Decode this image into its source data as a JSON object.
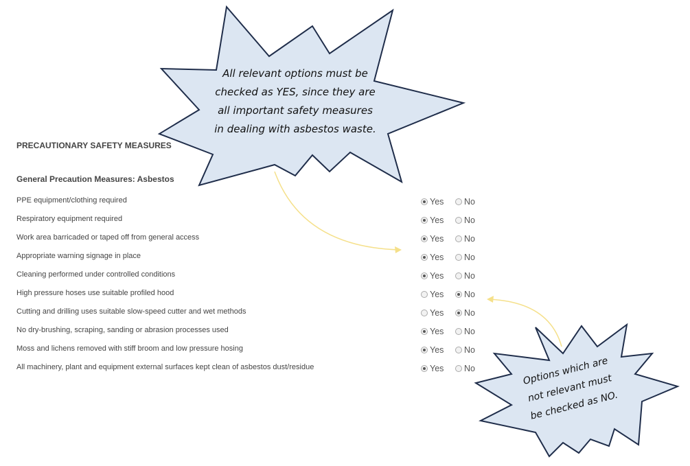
{
  "section_title": "PRECAUTIONARY SAFETY MEASURES",
  "subsection_title": "General Precaution Measures: Asbestos",
  "option_labels": {
    "yes": "Yes",
    "no": "No"
  },
  "items": [
    {
      "label": "PPE equipment/clothing required",
      "value": "Yes"
    },
    {
      "label": "Respiratory equipment required",
      "value": "Yes"
    },
    {
      "label": "Work area barricaded or taped off from general access",
      "value": "Yes"
    },
    {
      "label": "Appropriate warning signage in place",
      "value": "Yes"
    },
    {
      "label": "Cleaning performed under controlled conditions",
      "value": "Yes"
    },
    {
      "label": "High pressure hoses use suitable profiled hood",
      "value": "No"
    },
    {
      "label": "Cutting and drilling uses suitable slow-speed cutter and wet methods",
      "value": "No"
    },
    {
      "label": "No dry-brushing, scraping, sanding or abrasion processes used",
      "value": "Yes"
    },
    {
      "label": "Moss and lichens removed with stiff broom and low pressure hosing",
      "value": "Yes"
    },
    {
      "label": "All machinery, plant and equipment external surfaces kept clean of asbestos dust/residue",
      "value": "Yes"
    }
  ],
  "callouts": {
    "top": [
      "All relevant options must be",
      "checked as YES, since they are",
      "all important safety measures",
      "in dealing with asbestos waste."
    ],
    "bottom": [
      "Options which are",
      "not relevant must",
      "be checked as NO."
    ]
  },
  "colors": {
    "callout_fill": "#dce6f2",
    "callout_stroke": "#1f2d4a",
    "arrow": "#f5e08a"
  }
}
